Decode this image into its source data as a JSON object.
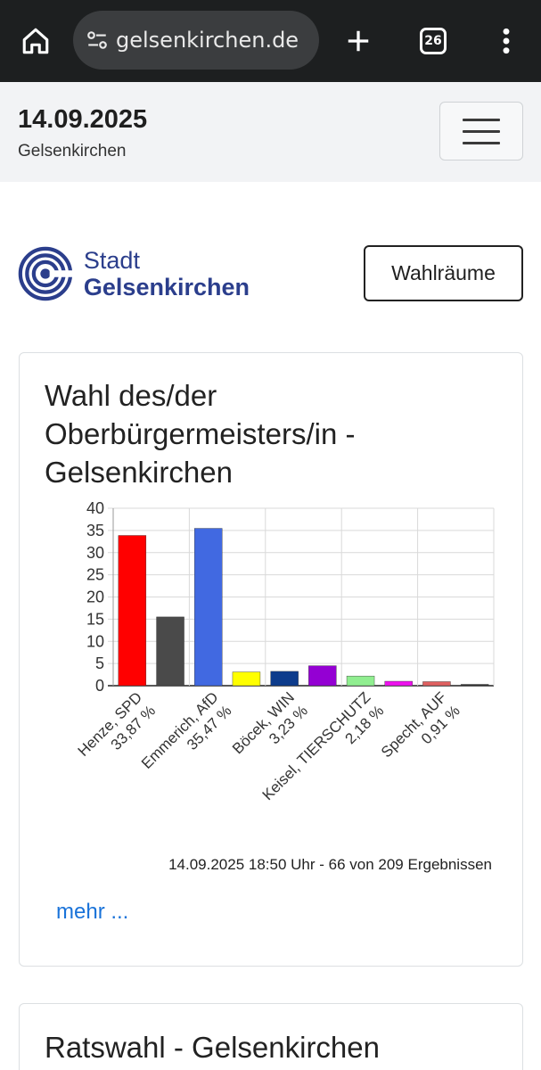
{
  "browser": {
    "url": "gelsenkirchen.de",
    "tab_count": "26"
  },
  "header": {
    "date": "14.09.2025",
    "city": "Gelsenkirchen"
  },
  "logo": {
    "line1": "Stadt",
    "line2": "Gelsenkirchen"
  },
  "wahlraeume_button": "Wahlräume",
  "card1": {
    "title": "Wahl des/der Oberbürgermeisters/in - Gelsenkirchen",
    "footnote": "14.09.2025 18:50 Uhr - 66 von 209 Ergebnissen",
    "more": "mehr ..."
  },
  "card2": {
    "title": "Ratswahl - Gelsenkirchen"
  },
  "chart_data": {
    "type": "bar",
    "categories": [
      "Henze, SPD",
      "",
      "Emmerich, AfD",
      "",
      "Böcek, WIN",
      "",
      "Keisel, TIERSCHUTZ",
      "",
      "Specht, AUF",
      ""
    ],
    "category_labels": [
      "Henze, SPD\n33,87 %",
      "Emmerich, AfD\n35,47 %",
      "Böcek, WIN\n3,23 %",
      "Keisel, TIERSCHUTZ\n2,18 %",
      "Specht, AUF\n0,91 %"
    ],
    "label_lines": [
      {
        "name": "Henze, SPD",
        "pct": "33,87 %"
      },
      {
        "name": "Emmerich, AfD",
        "pct": "35,47 %"
      },
      {
        "name": "Böcek, WIN",
        "pct": "3,23 %"
      },
      {
        "name": "Keisel, TIERSCHUTZ",
        "pct": "2,18 %"
      },
      {
        "name": "Specht, AUF",
        "pct": "0,91 %"
      }
    ],
    "values": [
      33.87,
      15.5,
      35.47,
      3.1,
      3.23,
      4.5,
      2.18,
      1.0,
      0.91,
      0.3
    ],
    "colors": [
      "#ff0000",
      "#4a4a4a",
      "#4169e1",
      "#ffff00",
      "#0d3c8c",
      "#9400d3",
      "#90ee90",
      "#ee11ee",
      "#e06060",
      "#333333"
    ],
    "ylim": [
      0,
      40
    ],
    "yticks": [
      "0",
      "5",
      "10",
      "15",
      "20",
      "25",
      "30",
      "35",
      "40"
    ],
    "grid": true
  }
}
